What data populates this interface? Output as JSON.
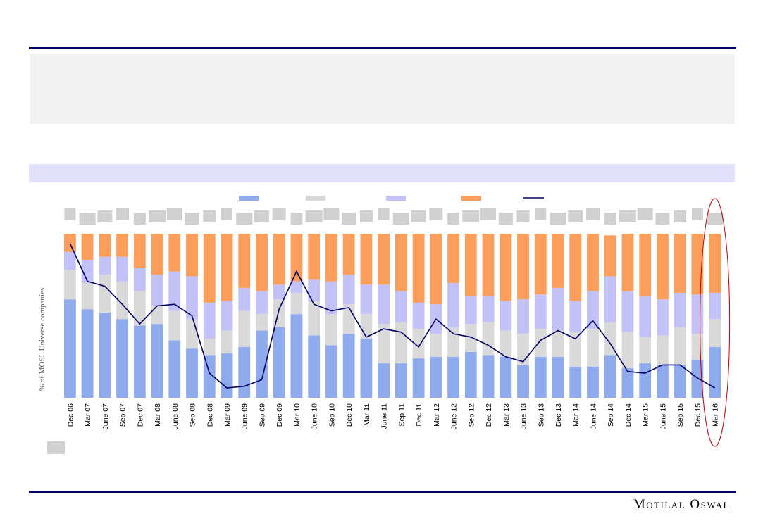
{
  "brand": "Motilal Oswal",
  "colors": {
    "rule": "#000066",
    "panel": "#f2f2f2",
    "band": "#e1e1fb",
    "s1": "#8fabee",
    "s2": "#d9d9d9",
    "s3": "#c2c2f8",
    "s4": "#fb9d5b",
    "line": "#000066",
    "highlight": "#c00000",
    "placeholder": "#d0d0d0"
  },
  "chart_data": {
    "type": "bar",
    "stacked": true,
    "ylabel": "% of MOSL Universe companies",
    "ylim": [
      0,
      100
    ],
    "categories": [
      "Dec 06",
      "Mar 07",
      "June 07",
      "Sep 07",
      "Dec 07",
      "Mar 08",
      "June 08",
      "Sep 08",
      "Dec 08",
      "Mar 09",
      "June 09",
      "Sep 09",
      "Dec 09",
      "Mar 10",
      "June 10",
      "Sep 10",
      "Dec 10",
      "Mar 11",
      "June 11",
      "Sep 11",
      "Dec 11",
      "Mar 12",
      "June 12",
      "Sep 12",
      "Dec 12",
      "Mar 13",
      "June 13",
      "Sep 13",
      "Dec 13",
      "Mar 14",
      "June 14",
      "Sep 14",
      "Dec 14",
      "Mar 15",
      "June 15",
      "Sep 15",
      "Dec 15",
      "Mar 16"
    ],
    "series": [
      {
        "name": "",
        "values": [
          60,
          54,
          52,
          48,
          44,
          45,
          35,
          30,
          26,
          27,
          31,
          41,
          43,
          51,
          38,
          32,
          39,
          36,
          21,
          21,
          24,
          25,
          25,
          28,
          26,
          25,
          20,
          25,
          25,
          19,
          19,
          26,
          18,
          21,
          20,
          20,
          23,
          31
        ]
      },
      {
        "name": "",
        "values": [
          18,
          16,
          23,
          23,
          21,
          11,
          18,
          18,
          10,
          14,
          22,
          10,
          17,
          13,
          21,
          19,
          18,
          15,
          24,
          25,
          18,
          14,
          18,
          17,
          20,
          16,
          19,
          17,
          16,
          21,
          23,
          20,
          22,
          16,
          18,
          23,
          16,
          17
        ]
      },
      {
        "name": "",
        "values": [
          11,
          14,
          11,
          15,
          14,
          19,
          24,
          26,
          22,
          18,
          14,
          14,
          9,
          7,
          13,
          20,
          18,
          18,
          24,
          19,
          16,
          18,
          27,
          17,
          16,
          18,
          21,
          21,
          26,
          19,
          23,
          28,
          25,
          25,
          22,
          21,
          24,
          16
        ]
      },
      {
        "name": "",
        "values": [
          11,
          16,
          14,
          14,
          21,
          25,
          23,
          26,
          42,
          41,
          33,
          35,
          31,
          29,
          28,
          29,
          25,
          31,
          31,
          35,
          42,
          43,
          30,
          38,
          38,
          41,
          40,
          37,
          33,
          41,
          35,
          25,
          35,
          38,
          40,
          36,
          37,
          36
        ]
      }
    ],
    "line": {
      "name": "",
      "values": [
        94,
        71,
        68,
        57,
        45,
        56,
        57,
        50,
        15,
        6,
        7,
        11,
        54,
        77,
        57,
        53,
        55,
        37,
        42,
        40,
        31,
        48,
        39,
        37,
        32,
        25,
        22,
        35,
        41,
        36,
        47,
        33,
        16,
        15,
        20,
        20,
        12,
        6
      ]
    },
    "highlight_category": "Mar 16"
  }
}
